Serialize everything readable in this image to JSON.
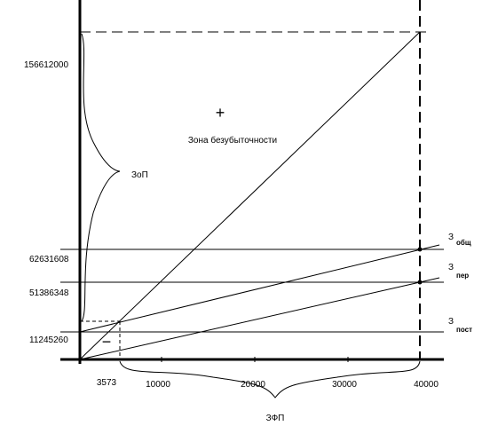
{
  "y_labels": [
    "156612000",
    "62631608",
    "51386348",
    "11245260"
  ],
  "x_labels": [
    "3573",
    "10000",
    "20000",
    "30000",
    "40000"
  ],
  "annotations": {
    "zone": "Зона безубыточности",
    "plus": "+",
    "minus": "−",
    "left_brace": "ЗоП",
    "bottom_brace": "ЗФП"
  },
  "curve_labels": [
    {
      "main": "З",
      "sub": "общ"
    },
    {
      "main": "З",
      "sub": "пер"
    },
    {
      "main": "З",
      "sub": "пост"
    }
  ]
}
